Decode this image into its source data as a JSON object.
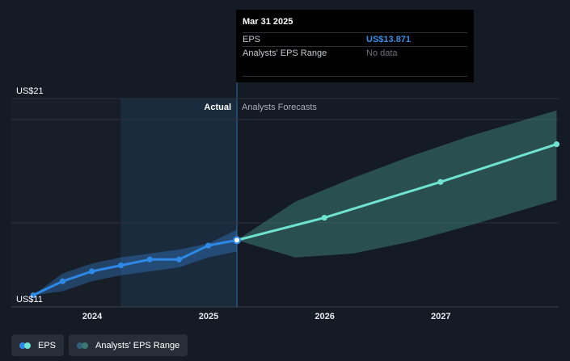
{
  "chart_data": {
    "type": "line",
    "title": "",
    "xlabel": "",
    "ylabel": "",
    "ylim": [
      11,
      21
    ],
    "y_tick_labels": [
      "US$21",
      "US$11"
    ],
    "x_tick_labels": [
      "2024",
      "2025",
      "2026",
      "2027"
    ],
    "region_labels": {
      "actual": "Actual",
      "forecast": "Analysts Forecasts"
    },
    "grid": true,
    "series": [
      {
        "name": "EPS",
        "color": "#2e89e6",
        "points": [
          [
            "2023-06-30",
            11.1
          ],
          [
            "2023-09-30",
            11.8
          ],
          [
            "2023-12-31",
            12.3
          ],
          [
            "2024-03-31",
            12.6
          ],
          [
            "2024-06-30",
            12.9
          ],
          [
            "2024-09-30",
            12.9
          ],
          [
            "2024-12-31",
            13.6
          ],
          [
            "2025-03-31",
            13.871
          ]
        ]
      },
      {
        "name": "EPS forecast",
        "color": "#6fe3cf",
        "points": [
          [
            "2025-03-31",
            13.871
          ],
          [
            "2025-12-31",
            15.0
          ],
          [
            "2026-12-31",
            16.8
          ],
          [
            "2027-12-31",
            18.7
          ]
        ]
      }
    ],
    "ranges": [
      {
        "name": "Analysts' EPS Range",
        "color": "#3a8fe8",
        "low": [
          [
            "2023-06-30",
            11.1
          ],
          [
            "2023-09-30",
            11.3
          ],
          [
            "2023-12-31",
            11.8
          ],
          [
            "2024-03-31",
            12.1
          ],
          [
            "2024-06-30",
            12.3
          ],
          [
            "2024-09-30",
            12.5
          ],
          [
            "2024-12-31",
            13.0
          ],
          [
            "2025-03-31",
            13.3
          ]
        ],
        "high": [
          [
            "2023-06-30",
            11.1
          ],
          [
            "2023-09-30",
            12.2
          ],
          [
            "2023-12-31",
            12.7
          ],
          [
            "2024-03-31",
            13.0
          ],
          [
            "2024-06-30",
            13.2
          ],
          [
            "2024-09-30",
            13.4
          ],
          [
            "2024-12-31",
            13.7
          ],
          [
            "2025-03-31",
            14.4
          ]
        ]
      },
      {
        "name": "Analysts' EPS Range forecast",
        "color": "#3b7a72",
        "low": [
          [
            "2025-03-31",
            13.871
          ],
          [
            "2025-09-30",
            13.0
          ],
          [
            "2026-03-31",
            13.2
          ],
          [
            "2026-09-30",
            13.8
          ],
          [
            "2027-03-31",
            14.6
          ],
          [
            "2027-12-31",
            15.9
          ]
        ],
        "high": [
          [
            "2025-03-31",
            13.871
          ],
          [
            "2025-09-30",
            15.8
          ],
          [
            "2026-03-31",
            17.0
          ],
          [
            "2026-09-30",
            18.1
          ],
          [
            "2027-03-31",
            19.1
          ],
          [
            "2027-12-31",
            20.4
          ]
        ]
      }
    ],
    "highlight_period": [
      "2024-03-31",
      "2025-03-31"
    ]
  },
  "tooltip": {
    "date": "Mar 31 2025",
    "rows": [
      {
        "label": "EPS",
        "value": "US$13.871"
      },
      {
        "label": "Analysts' EPS Range",
        "value": "No data"
      }
    ]
  },
  "legend": {
    "items": [
      {
        "label": "EPS",
        "colors": [
          "#2e89e6",
          "#6fe3cf"
        ]
      },
      {
        "label": "Analysts' EPS Range",
        "colors": [
          "#2f5f7d",
          "#3b7a72"
        ]
      }
    ]
  }
}
